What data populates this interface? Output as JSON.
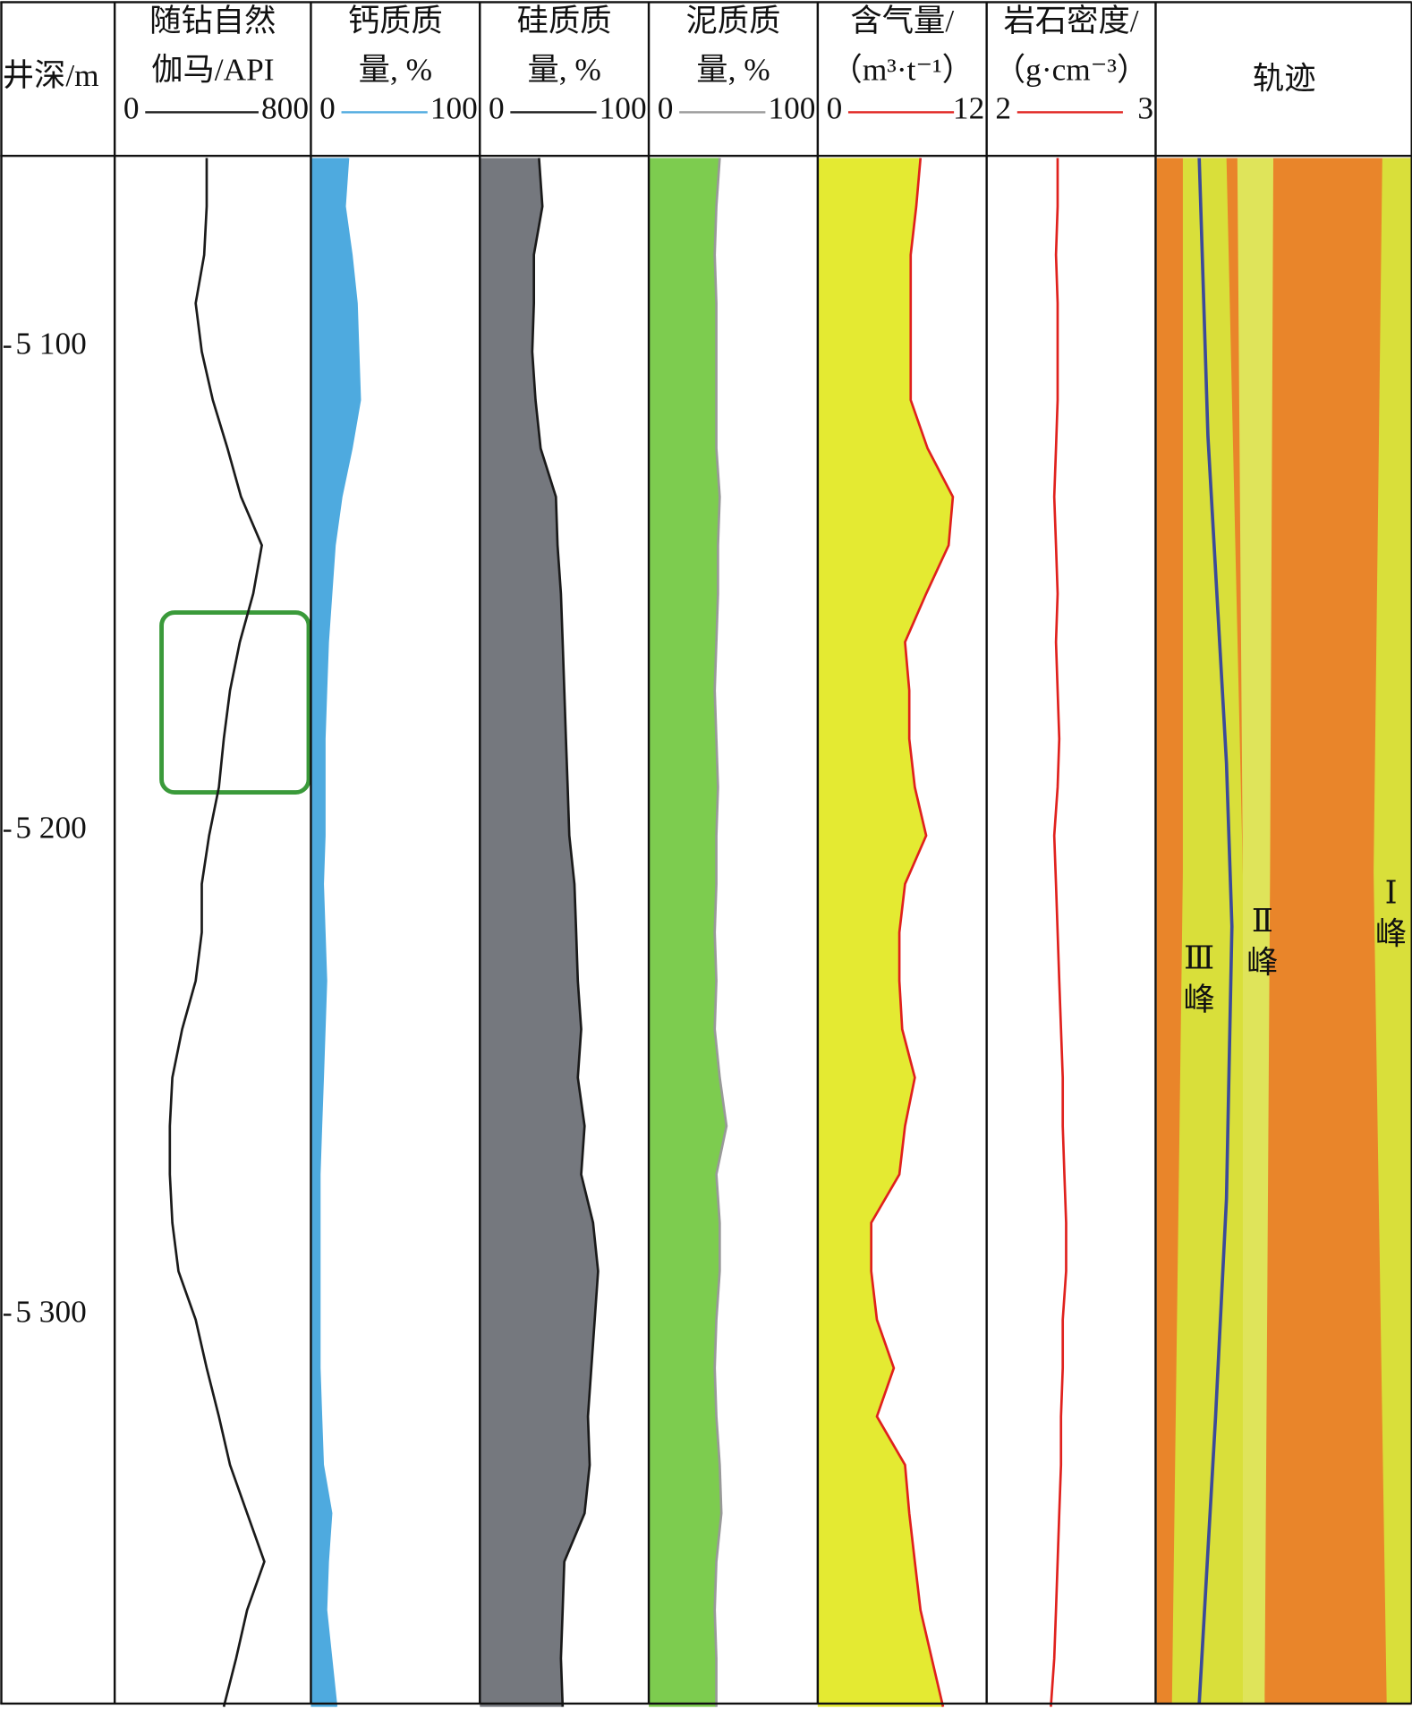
{
  "chart_data": {
    "type": "well-log",
    "ylabel": "井深/m",
    "depth": [
      5061,
      5071,
      5081,
      5091,
      5101,
      5111,
      5121,
      5131,
      5141,
      5151,
      5161,
      5171,
      5181,
      5191,
      5201,
      5211,
      5221,
      5231,
      5241,
      5251,
      5261,
      5271,
      5281,
      5291,
      5301,
      5311,
      5321,
      5331,
      5341,
      5351,
      5361,
      5371,
      5381
    ],
    "ylim": [
      5061,
      5381
    ],
    "yticks": [
      {
        "value": 5100,
        "label": "5 100"
      },
      {
        "value": 5200,
        "label": "5 200"
      },
      {
        "value": 5300,
        "label": "5 300"
      }
    ],
    "tracks": [
      {
        "title": [
          "随钻自然",
          "伽马/API"
        ],
        "xlim": [
          0,
          800
        ],
        "color": "#1a1a1a",
        "values": [
          375,
          375,
          365,
          330,
          355,
          400,
          460,
          515,
          600,
          565,
          510,
          470,
          445,
          425,
          385,
          355,
          355,
          330,
          275,
          235,
          225,
          225,
          235,
          260,
          330,
          375,
          425,
          470,
          540,
          610,
          540,
          495,
          445
        ]
      },
      {
        "title": [
          "钙质质",
          "量, %"
        ],
        "xlim": [
          0,
          100
        ],
        "color": "#4eaadf",
        "fill": "#4eaadf",
        "values": [
          22,
          20,
          24,
          27,
          28,
          29,
          24,
          18,
          14,
          12,
          10,
          9,
          8,
          8,
          8,
          7,
          8,
          9,
          8,
          7,
          6,
          5,
          5,
          5,
          5,
          5,
          6,
          7,
          12,
          10,
          9,
          12,
          15
        ]
      },
      {
        "title": [
          "硅质质",
          "量, %"
        ],
        "xlim": [
          0,
          100
        ],
        "color": "#1a1a1a",
        "fill": "#75787e",
        "values": [
          35,
          37,
          32,
          32,
          31,
          33,
          36,
          45,
          46,
          48,
          49,
          50,
          51,
          52,
          53,
          56,
          57,
          58,
          60,
          58,
          62,
          60,
          67,
          70,
          68,
          66,
          64,
          65,
          62,
          50,
          49,
          48,
          49
        ]
      },
      {
        "title": [
          "泥质质",
          "量, %"
        ],
        "xlim": [
          0,
          100
        ],
        "color": "#999999",
        "fill": "#7dcc4f",
        "values": [
          42,
          40,
          39,
          40,
          40,
          40,
          40,
          42,
          41,
          41,
          40,
          39,
          40,
          41,
          40,
          40,
          39,
          40,
          39,
          42,
          46,
          40,
          42,
          42,
          40,
          39,
          40,
          42,
          43,
          40,
          39,
          40,
          40
        ]
      },
      {
        "title": [
          "含气量/",
          "（m³·t⁻¹）"
        ],
        "xlim": [
          0,
          12
        ],
        "color": "#e0211d",
        "fill": "#e4ea32",
        "values": [
          7.3,
          7.0,
          6.6,
          6.6,
          6.6,
          6.6,
          7.8,
          9.6,
          9.3,
          7.7,
          6.2,
          6.5,
          6.5,
          6.9,
          7.7,
          6.2,
          5.8,
          5.8,
          6.0,
          6.9,
          6.2,
          5.8,
          3.8,
          3.8,
          4.2,
          5.4,
          4.2,
          6.2,
          6.5,
          6.9,
          7.3,
          8.1,
          8.9
        ]
      },
      {
        "title": [
          "岩石密度/",
          "（g·cm⁻³）"
        ],
        "xlim": [
          2,
          3
        ],
        "color": "#e0211d",
        "values": [
          2.42,
          2.42,
          2.41,
          2.42,
          2.42,
          2.42,
          2.41,
          2.4,
          2.41,
          2.42,
          2.41,
          2.42,
          2.43,
          2.42,
          2.4,
          2.41,
          2.42,
          2.43,
          2.44,
          2.45,
          2.45,
          2.46,
          2.47,
          2.47,
          2.45,
          2.45,
          2.44,
          2.44,
          2.43,
          2.42,
          2.41,
          2.4,
          2.38
        ]
      }
    ],
    "trajectory": {
      "title": "轨迹",
      "peaks": [
        [
          "Ⅲ",
          "峰"
        ],
        [
          "Ⅱ",
          "峰"
        ],
        [
          "Ⅰ",
          "峰"
        ]
      ]
    }
  }
}
